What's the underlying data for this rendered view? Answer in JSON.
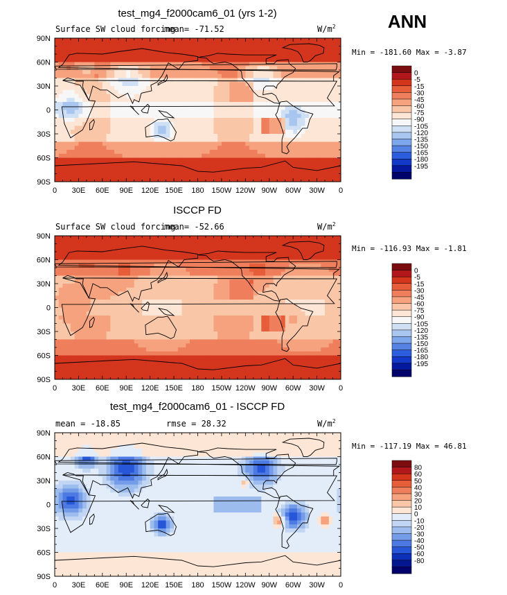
{
  "figure": {
    "season": "ANN",
    "title_main": "test_mg4_f2000cam6_01 (yrs 1-2)",
    "title_obs": "ISCCP FD",
    "title_diff": "test_mg4_f2000cam6_01 - ISCCP FD"
  },
  "chart_data": [
    {
      "type": "heatmap",
      "title": "test_mg4_f2000cam6_01 (yrs 1-2)",
      "left_label": "Surface SW cloud forcing",
      "mean_text": "mean= -71.52",
      "units_base": "W/m",
      "units_exp": "2",
      "stats_text": "Min = -181.60 Max =  -3.87",
      "mean": -71.52,
      "min": -181.6,
      "max": -3.87,
      "x_ticks": [
        "0",
        "30E",
        "60E",
        "90E",
        "120E",
        "150E",
        "180",
        "150W",
        "120W",
        "90W",
        "60W",
        "30W",
        "0"
      ],
      "y_ticks": [
        "90N",
        "60N",
        "30N",
        "0",
        "30S",
        "60S",
        "90S"
      ],
      "legend_levels": [
        "0",
        "-5",
        "-15",
        "-30",
        "-45",
        "-60",
        "-75",
        "-90",
        "-105",
        "-120",
        "-135",
        "-150",
        "-165",
        "-180",
        "-195"
      ],
      "legend_colors": [
        "#7b0d10",
        "#b2181b",
        "#d4351d",
        "#e65d3a",
        "#ef7f5c",
        "#f6a27f",
        "#f9c6a8",
        "#fde6d6",
        "#f7f7f7",
        "#cfe0f5",
        "#a9c6f0",
        "#7ea6ea",
        "#5582e3",
        "#2c5ddc",
        "#1239c7",
        "#06189e",
        "#01036b"
      ]
    },
    {
      "type": "heatmap",
      "title": "ISCCP FD",
      "left_label": "Surface SW cloud forcing",
      "mean_text": "mean= -52.66",
      "units_base": "W/m",
      "units_exp": "2",
      "stats_text": "Min = -116.93 Max =  -1.81",
      "mean": -52.66,
      "min": -116.93,
      "max": -1.81,
      "x_ticks": [
        "0",
        "30E",
        "60E",
        "90E",
        "120E",
        "150E",
        "180",
        "150W",
        "120W",
        "90W",
        "60W",
        "30W",
        "0"
      ],
      "y_ticks": [
        "90N",
        "60N",
        "30N",
        "0",
        "30S",
        "60S",
        "90S"
      ],
      "legend_levels": [
        "0",
        "-5",
        "-15",
        "-30",
        "-45",
        "-60",
        "-75",
        "-90",
        "-105",
        "-120",
        "-135",
        "-150",
        "-165",
        "-180",
        "-195"
      ],
      "legend_colors": [
        "#7b0d10",
        "#b2181b",
        "#d4351d",
        "#e65d3a",
        "#ef7f5c",
        "#f6a27f",
        "#f9c6a8",
        "#fde6d6",
        "#f7f7f7",
        "#cfe0f5",
        "#a9c6f0",
        "#7ea6ea",
        "#5582e3",
        "#2c5ddc",
        "#1239c7",
        "#06189e",
        "#01036b"
      ]
    },
    {
      "type": "heatmap",
      "title": "test_mg4_f2000cam6_01 - ISCCP FD",
      "left_label": "mean = -18.85",
      "rmse_text": "rmse =  28.32",
      "units_base": "W/m",
      "units_exp": "2",
      "stats_text": "Min = -117.19 Max =  46.81",
      "mean": -18.85,
      "rmse": 28.32,
      "min": -117.19,
      "max": 46.81,
      "x_ticks": [
        "0",
        "30E",
        "60E",
        "90E",
        "120E",
        "150E",
        "180",
        "150W",
        "120W",
        "90W",
        "60W",
        "30W",
        "0"
      ],
      "y_ticks": [
        "90N",
        "60N",
        "30N",
        "0",
        "30S",
        "60S",
        "90S"
      ],
      "legend_levels": [
        "80",
        "60",
        "50",
        "40",
        "30",
        "20",
        "10",
        "0",
        "-10",
        "-20",
        "-30",
        "-40",
        "-50",
        "-60",
        "-80"
      ],
      "legend_colors": [
        "#7b0d10",
        "#b2181b",
        "#d4351d",
        "#e65d3a",
        "#ef7f5c",
        "#f6a27f",
        "#f9c6a8",
        "#fde6d6",
        "#e3ecf9",
        "#c2d6f3",
        "#9cbcee",
        "#759ce8",
        "#4d7ae2",
        "#2756d8",
        "#0c31b8",
        "#041790",
        "#01036b"
      ]
    }
  ]
}
